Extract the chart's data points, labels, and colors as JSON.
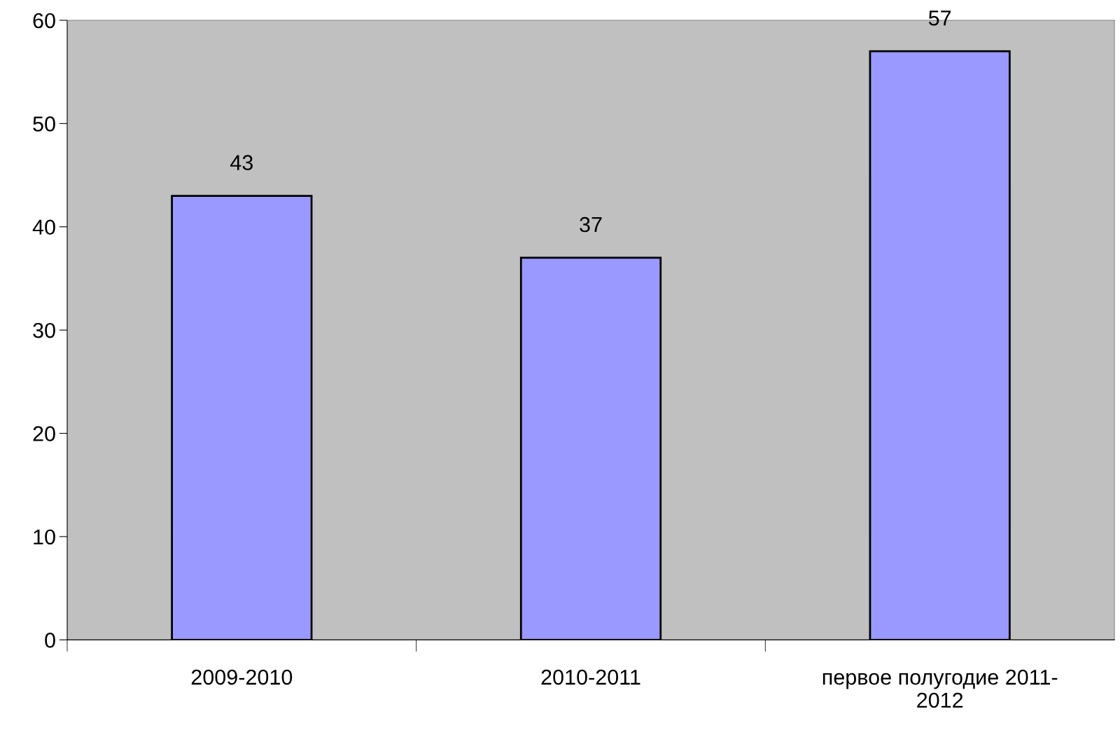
{
  "chart_data": {
    "type": "bar",
    "categories": [
      "2009-2010",
      "2010-2011",
      "первое полугодие 2011-\n2012"
    ],
    "values": [
      43,
      37,
      57
    ],
    "color": "#9999ff",
    "ylim": [
      0,
      60
    ],
    "yticks": [
      0,
      10,
      20,
      30,
      40,
      50,
      60
    ],
    "data_labels": true
  }
}
